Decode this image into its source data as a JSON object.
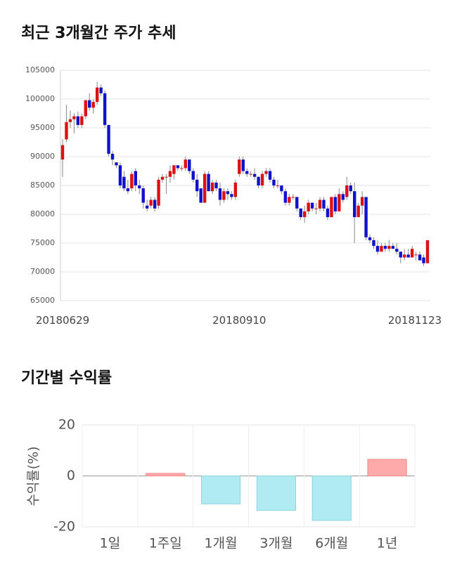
{
  "chart_data": [
    {
      "type": "candlestick",
      "title": "최근 3개월간 주가 추세",
      "categories": [
        "20180629",
        null,
        null,
        null,
        null,
        null,
        null,
        null,
        null,
        null,
        null,
        null,
        null,
        null,
        null,
        null,
        null,
        null,
        null,
        null,
        null,
        null,
        null,
        null,
        null,
        null,
        null,
        null,
        null,
        null,
        null,
        null,
        null,
        null,
        null,
        null,
        null,
        null,
        null,
        null,
        null,
        null,
        null,
        null,
        null,
        null,
        "20180910",
        null,
        null,
        null,
        null,
        null,
        null,
        null,
        null,
        null,
        null,
        null,
        null,
        null,
        null,
        null,
        null,
        null,
        null,
        null,
        null,
        null,
        null,
        null,
        null,
        null,
        null,
        null,
        null,
        null,
        null,
        null,
        null,
        null,
        null,
        null,
        null,
        null,
        null,
        null,
        null,
        null,
        null,
        null,
        null,
        null,
        null,
        null,
        null,
        "20181123"
      ],
      "open": [
        89500,
        93000,
        96000,
        96500,
        97000,
        95500,
        97000,
        99800,
        98500,
        99500,
        102000,
        101000,
        95500,
        90500,
        89000,
        88500,
        86500,
        84500,
        84500,
        87500,
        85000,
        84500,
        81500,
        81500,
        82500,
        81500,
        86000,
        86500,
        86500,
        87000,
        88500,
        88000,
        88000,
        89500,
        87500,
        86000,
        84500,
        82000,
        87000,
        84000,
        85500,
        84500,
        82500,
        84000,
        83500,
        83000,
        87000,
        89500,
        87500,
        87000,
        87000,
        86500,
        85000,
        87000,
        87500,
        86000,
        85000,
        85000,
        84000,
        82000,
        83000,
        83000,
        81000,
        79500,
        80500,
        82000,
        81000,
        81000,
        82500,
        81000,
        79500,
        83000,
        80500,
        83500,
        83000,
        85000,
        84000,
        79500,
        81500,
        83000,
        76000,
        75500,
        74500,
        73500,
        74500,
        74000,
        74500,
        74000,
        73500,
        72500,
        73000,
        72500,
        73000,
        73000,
        72500,
        71500
      ],
      "high": [
        93000,
        99000,
        98000,
        97500,
        97800,
        97500,
        99500,
        101000,
        100000,
        103000,
        102500,
        101500,
        95500,
        91000,
        89000,
        89000,
        87500,
        86000,
        87500,
        88000,
        86000,
        85000,
        82500,
        83000,
        83000,
        86500,
        87000,
        87000,
        88500,
        88500,
        88500,
        88500,
        90000,
        89500,
        88000,
        87000,
        84500,
        87500,
        87500,
        86000,
        86000,
        85500,
        84500,
        84500,
        84000,
        86000,
        90000,
        90000,
        88000,
        87500,
        88000,
        86500,
        87500,
        88000,
        88000,
        86500,
        86000,
        85000,
        84500,
        83500,
        83500,
        83000,
        81000,
        81500,
        82500,
        82000,
        82000,
        83000,
        83000,
        81500,
        83000,
        83500,
        84500,
        84000,
        86500,
        85500,
        85500,
        82000,
        84000,
        83000,
        76500,
        76000,
        75500,
        75000,
        75000,
        75500,
        75000,
        75000,
        73500,
        74000,
        74000,
        74500,
        73500,
        73500,
        73000,
        75500
      ],
      "low": [
        86500,
        92500,
        95000,
        94000,
        95000,
        95000,
        96500,
        98000,
        97500,
        99000,
        100500,
        95000,
        90000,
        88500,
        88000,
        84500,
        84000,
        83500,
        84000,
        84000,
        83500,
        81000,
        80500,
        81000,
        80500,
        81000,
        85500,
        83500,
        85500,
        86000,
        87500,
        87500,
        87500,
        87000,
        85500,
        83000,
        82000,
        82000,
        84000,
        83500,
        84000,
        81500,
        82000,
        82500,
        82500,
        82500,
        86500,
        87000,
        86500,
        86500,
        86000,
        84500,
        84500,
        86500,
        85500,
        84500,
        84500,
        83500,
        81500,
        81500,
        82500,
        80500,
        79000,
        78500,
        80000,
        80500,
        80000,
        80500,
        80500,
        79000,
        79500,
        80000,
        80500,
        82000,
        82500,
        83500,
        75000,
        79500,
        80000,
        75500,
        75000,
        74000,
        73000,
        73500,
        73500,
        73500,
        74000,
        73000,
        71500,
        72000,
        72500,
        72500,
        72000,
        72000,
        71000,
        71500
      ],
      "close": [
        92000,
        96000,
        96500,
        97000,
        95500,
        97000,
        99800,
        98500,
        99500,
        102000,
        101000,
        95500,
        90500,
        89500,
        88500,
        85000,
        84500,
        84000,
        87000,
        85000,
        84500,
        82000,
        81000,
        82500,
        81000,
        86000,
        86500,
        86500,
        87500,
        88500,
        88000,
        88000,
        89500,
        87500,
        86000,
        84000,
        82000,
        87000,
        84000,
        85500,
        84500,
        82500,
        84000,
        83500,
        83000,
        85500,
        89500,
        87500,
        87000,
        87000,
        86500,
        85000,
        87000,
        87500,
        86000,
        85000,
        85000,
        84000,
        82000,
        83000,
        83000,
        81000,
        79500,
        80500,
        82000,
        81000,
        81000,
        82500,
        81000,
        79500,
        83000,
        80500,
        83500,
        82500,
        85000,
        84000,
        79500,
        81500,
        83000,
        76000,
        75500,
        74500,
        73500,
        74500,
        74000,
        74500,
        74000,
        73500,
        72500,
        73000,
        72500,
        74000,
        73000,
        72000,
        71500,
        75500
      ],
      "up_color": "#dd1111",
      "down_color": "#1111cc",
      "ylim": [
        65000,
        105000
      ],
      "yticks": [
        65000,
        70000,
        75000,
        80000,
        85000,
        90000,
        95000,
        100000,
        105000
      ],
      "grid": true
    },
    {
      "type": "bar",
      "title": "기간별 수익률",
      "y_label": "수익률(%)",
      "categories": [
        "1일",
        "1주일",
        "1개월",
        "3개월",
        "6개월",
        "1년"
      ],
      "values": [
        0,
        1,
        -11,
        -13.5,
        -17.5,
        6.5
      ],
      "positive_color": "#ffaaaa",
      "negative_color": "#b0ebf3",
      "ylim": [
        -20,
        20
      ],
      "yticks": [
        -20,
        0,
        20
      ],
      "grid": true
    }
  ]
}
